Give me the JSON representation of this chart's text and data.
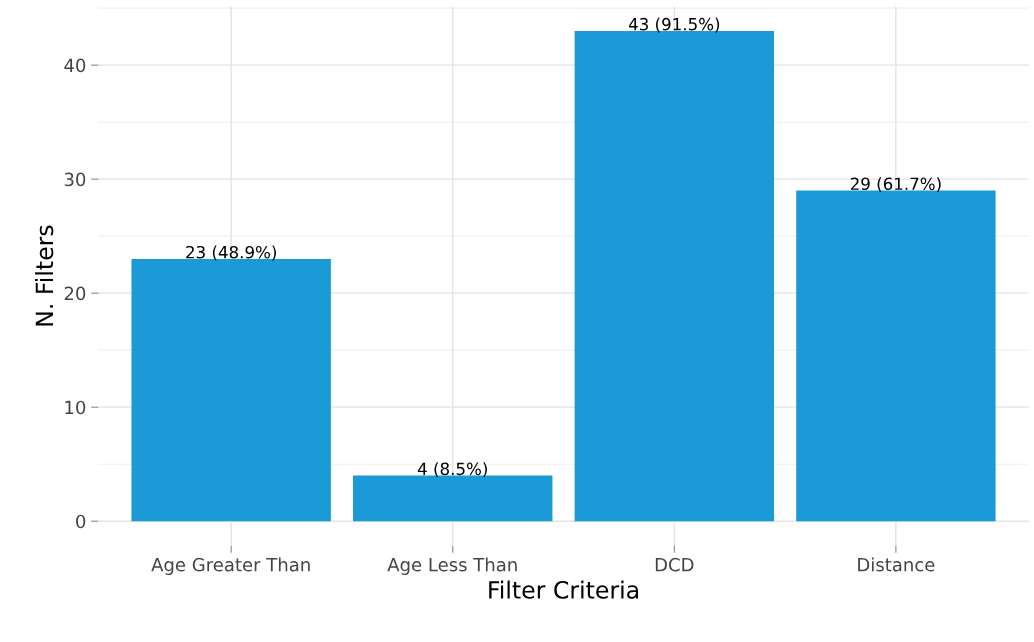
{
  "chart_data": {
    "type": "bar",
    "xlabel": "Filter Criteria",
    "ylabel": "N. Filters",
    "categories": [
      "Age Greater Than",
      "Age Less Than",
      "DCD",
      "Distance"
    ],
    "values": [
      23,
      4,
      43,
      29
    ],
    "color": "#1a9bd7",
    "value_labels": [
      "23 (48.9%)",
      "4 (8.5%)",
      "43 (91.5%)",
      "29 (61.7%)"
    ],
    "ylim": [
      -2.15,
      45.15
    ],
    "yticks": [
      0,
      10,
      20,
      30,
      40
    ],
    "grid": true
  }
}
